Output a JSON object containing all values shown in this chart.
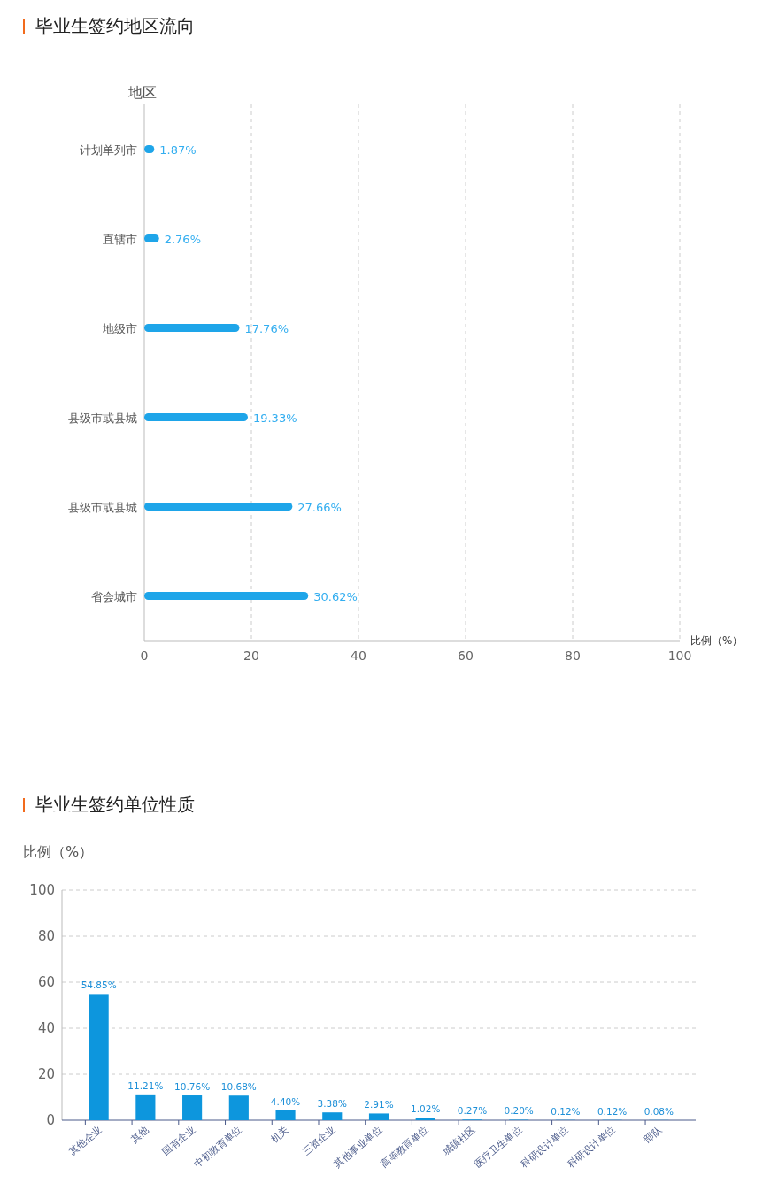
{
  "chart_data": [
    {
      "type": "bar",
      "orientation": "horizontal",
      "title": "毕业生签约地区流向",
      "ylabel": "地区",
      "xlabel": "比例（%）",
      "categories": [
        "计划单列市",
        "直辖市",
        "地级市",
        "县级市或县城",
        "县级市或县城",
        "省会城市"
      ],
      "values": [
        1.87,
        2.76,
        17.76,
        19.33,
        27.66,
        30.62
      ],
      "value_labels": [
        "1.87%",
        "2.76%",
        "17.76%",
        "19.33%",
        "27.66%",
        "30.62%"
      ],
      "color": "#1ea5e9",
      "xlim": [
        0,
        100
      ],
      "xticks": [
        0,
        20,
        40,
        60,
        80,
        100
      ],
      "grid": "x"
    },
    {
      "type": "bar",
      "title": "毕业生签约单位性质",
      "ylabel": "比例（%）",
      "categories": [
        "其他企业",
        "其他",
        "国有企业",
        "中初教育单位",
        "机关",
        "三资企业",
        "其他事业单位",
        "高等教育单位",
        "城镇社区",
        "医疗卫生单位",
        "科研设计单位",
        "科研设计单位",
        "部队"
      ],
      "values": [
        54.85,
        11.21,
        10.76,
        10.68,
        4.4,
        3.38,
        2.91,
        1.02,
        0.27,
        0.2,
        0.12,
        0.12,
        0.08
      ],
      "value_labels": [
        "54.85%",
        "11.21%",
        "10.76%",
        "10.68%",
        "4.40%",
        "3.38%",
        "2.91%",
        "1.02%",
        "0.27%",
        "0.20%",
        "0.12%",
        "0.12%",
        "0.08%"
      ],
      "color": "#0d96dd",
      "ylim": [
        0,
        100
      ],
      "yticks": [
        0,
        20,
        40,
        60,
        80,
        100
      ],
      "grid": "y"
    }
  ]
}
